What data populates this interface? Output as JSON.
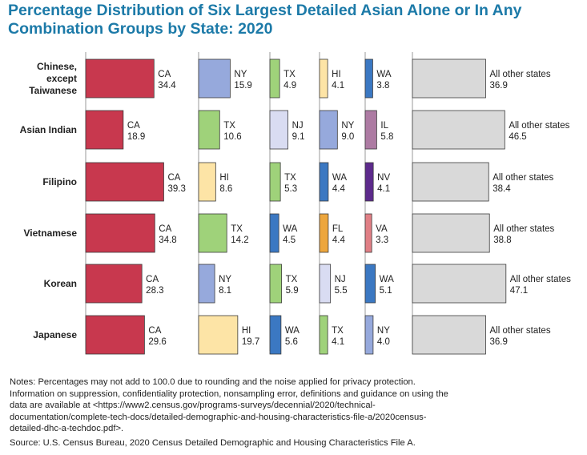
{
  "title_lines": [
    "Percentage Distribution of Six Largest Detailed Asian Alone or In Any",
    "Combination Groups by State: 2020"
  ],
  "colors": {
    "CA": "#c8384e",
    "NY": "#96a9dc",
    "TX": "#9fd27a",
    "HI": "#fde4a6",
    "WA": "#3b78c2",
    "NJ": "#d9dcf2",
    "IL": "#ad7ba3",
    "NV": "#5d2a8c",
    "FL": "#eda63d",
    "VA": "#e07f85",
    "All other states": "#d9d9d9",
    "title": "#1c7aa8"
  },
  "chart_data": {
    "type": "bar",
    "title": "Percentage Distribution of Six Largest Detailed Asian Alone or In Any Combination Groups by State: 2020",
    "xlabel": "",
    "ylabel": "",
    "xlim": [
      0,
      50
    ],
    "groups": [
      {
        "label_lines": [
          "Chinese,",
          "except",
          "Taiwanese"
        ],
        "bars": [
          {
            "state": "CA",
            "value": 34.4
          },
          {
            "state": "NY",
            "value": 15.9
          },
          {
            "state": "TX",
            "value": 4.9
          },
          {
            "state": "HI",
            "value": 4.1
          },
          {
            "state": "WA",
            "value": 3.8
          },
          {
            "state": "All other states",
            "value": 36.9
          }
        ]
      },
      {
        "label_lines": [
          "Asian Indian"
        ],
        "bars": [
          {
            "state": "CA",
            "value": 18.9
          },
          {
            "state": "TX",
            "value": 10.6
          },
          {
            "state": "NJ",
            "value": 9.1
          },
          {
            "state": "NY",
            "value": 9.0
          },
          {
            "state": "IL",
            "value": 5.8
          },
          {
            "state": "All other states",
            "value": 46.5
          }
        ]
      },
      {
        "label_lines": [
          "Filipino"
        ],
        "bars": [
          {
            "state": "CA",
            "value": 39.3
          },
          {
            "state": "HI",
            "value": 8.6
          },
          {
            "state": "TX",
            "value": 5.3
          },
          {
            "state": "WA",
            "value": 4.4
          },
          {
            "state": "NV",
            "value": 4.1
          },
          {
            "state": "All other states",
            "value": 38.4
          }
        ]
      },
      {
        "label_lines": [
          "Vietnamese"
        ],
        "bars": [
          {
            "state": "CA",
            "value": 34.8
          },
          {
            "state": "TX",
            "value": 14.2
          },
          {
            "state": "WA",
            "value": 4.5
          },
          {
            "state": "FL",
            "value": 4.4
          },
          {
            "state": "VA",
            "value": 3.3
          },
          {
            "state": "All other states",
            "value": 38.8
          }
        ]
      },
      {
        "label_lines": [
          "Korean"
        ],
        "bars": [
          {
            "state": "CA",
            "value": 28.3
          },
          {
            "state": "NY",
            "value": 8.1
          },
          {
            "state": "TX",
            "value": 5.9
          },
          {
            "state": "NJ",
            "value": 5.5
          },
          {
            "state": "WA",
            "value": 5.1
          },
          {
            "state": "All other states",
            "value": 47.1
          }
        ]
      },
      {
        "label_lines": [
          "Japanese"
        ],
        "bars": [
          {
            "state": "CA",
            "value": 29.6
          },
          {
            "state": "HI",
            "value": 19.7
          },
          {
            "state": "WA",
            "value": 5.6
          },
          {
            "state": "TX",
            "value": 4.1
          },
          {
            "state": "NY",
            "value": 4.0
          },
          {
            "state": "All other states",
            "value": 36.9
          }
        ]
      }
    ]
  },
  "notes_lines": [
    "Notes: Percentages may not add to 100.0 due to rounding and the noise applied for privacy protection.",
    "Information on suppression, confidentiality protection, nonsampling error, definitions and guidance on using the",
    "data are available at <https://www2.census.gov/programs-surveys/decennial/2020/technical-",
    "documentation/complete-tech-docs/detailed-demographic-and-housing-characteristics-file-a/2020census-",
    "detailed-dhc-a-techdoc.pdf>."
  ],
  "source": "Source: U.S. Census Bureau, 2020 Census Detailed Demographic and Housing Characteristics File A."
}
